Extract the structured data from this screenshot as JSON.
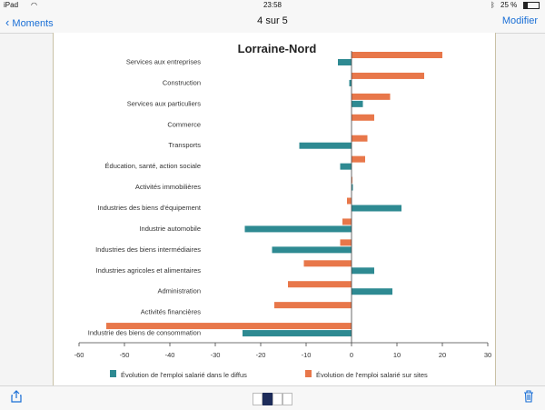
{
  "status_bar": {
    "device": "iPad",
    "time": "23:58",
    "battery": "25 %"
  },
  "nav": {
    "back_label": "Moments",
    "title": "4 sur 5",
    "edit_label": "Modifier"
  },
  "chart_data": {
    "type": "bar",
    "orientation": "horizontal",
    "title": "Lorraine-Nord",
    "categories": [
      "Services aux entreprises",
      "Construction",
      "Services aux particuliers",
      "Commerce",
      "Transports",
      "Éducation, santé, action sociale",
      "Activités immobilières",
      "Industries des biens d'équipement",
      "Industrie automobile",
      "Industries des biens intermédiaires",
      "Industries agricoles et alimentaires",
      "Administration",
      "Activités financières",
      "Industrie des biens de consommation"
    ],
    "series": [
      {
        "name": "Évolution de l'emploi salarié sur sites",
        "color": "#e8774a",
        "values": [
          20,
          16,
          8.5,
          5,
          3.5,
          3,
          0.2,
          -1,
          -2,
          -2.5,
          -10.5,
          -14,
          -17,
          -54
        ]
      },
      {
        "name": "Évolution de l'emploi salarié dans le diffus",
        "color": "#2e8a92",
        "values": [
          -3,
          -0.5,
          2.5,
          0,
          -11.5,
          -2.5,
          0.3,
          11,
          -23.5,
          -17.5,
          5,
          9,
          0,
          -24
        ]
      }
    ],
    "xlim": [
      -60,
      30
    ],
    "xticks": [
      "-60",
      "-50",
      "-40",
      "-30",
      "-20",
      "-10",
      "0",
      "10",
      "20",
      "30"
    ],
    "legend": [
      "Évolution de l'emploi salarié dans le diffus",
      "Évolution de l'emploi salarié sur sites"
    ],
    "legend_position": "bottom"
  }
}
